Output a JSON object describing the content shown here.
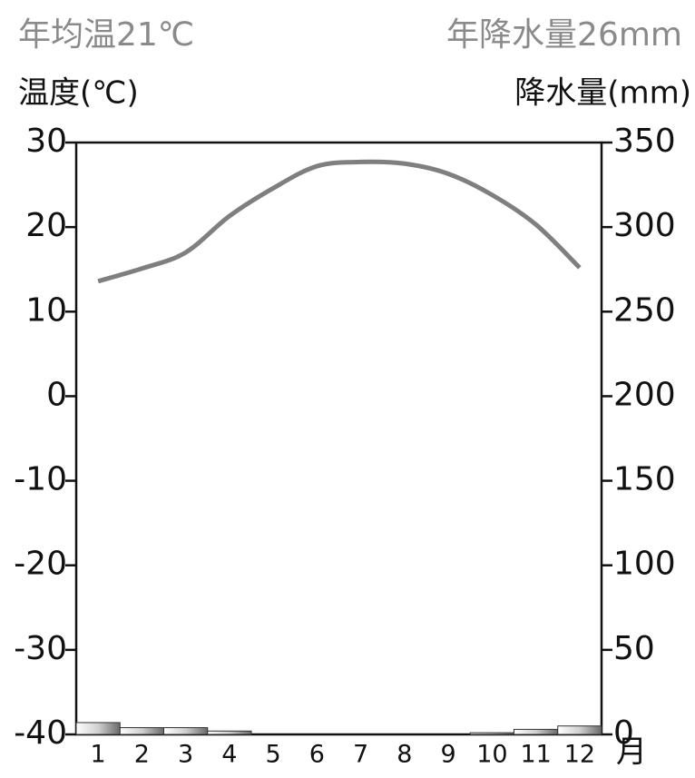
{
  "chart_data": {
    "type": "climate",
    "title": "年均温21℃",
    "subtitle": "年降水量26mm",
    "y_label": "温度(℃)",
    "y2_label": "降水量(mm)",
    "x_label": "月",
    "categories": [
      "1",
      "2",
      "3",
      "4",
      "5",
      "6",
      "7",
      "8",
      "9",
      "10",
      "11",
      "12"
    ],
    "series": [
      {
        "name": "降水量",
        "type": "bar",
        "axis": "y2",
        "color": "#9a9a9a",
        "values": [
          7,
          4,
          4,
          2,
          0,
          0,
          0,
          0,
          0,
          1,
          3,
          5
        ]
      },
      {
        "name": "温度",
        "type": "line",
        "axis": "y",
        "color": "#7f7f7f",
        "values": [
          13.6,
          15.1,
          17.0,
          21.3,
          24.6,
          27.2,
          27.7,
          27.5,
          26.3,
          23.8,
          20.3,
          15.2
        ]
      }
    ],
    "ylim": [
      -40,
      30
    ],
    "yticks": [
      -40,
      -30,
      -20,
      -10,
      0,
      10,
      20,
      30
    ],
    "y2lim": [
      0,
      350
    ],
    "y2ticks": [
      0,
      50,
      100,
      150,
      200,
      250,
      300,
      350
    ]
  }
}
